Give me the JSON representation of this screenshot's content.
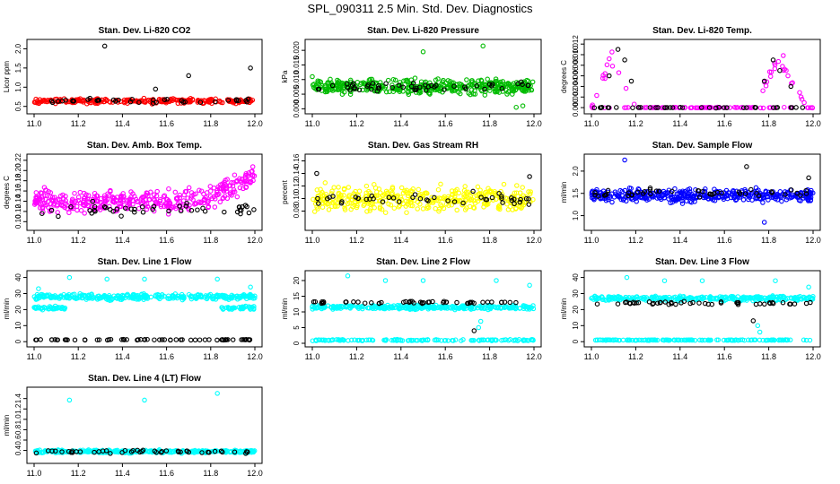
{
  "figure_title": "SPL_090311  2.5 Min. Std. Dev. Diagnostics",
  "chart_data": [
    {
      "type": "scatter",
      "title": "Stan. Dev. Li-820 CO2",
      "ylabel": "Licor ppm",
      "xlim": [
        11.0,
        12.0
      ],
      "ylim": [
        0.4,
        2.15
      ],
      "xticks": [
        "11.0",
        "11.2",
        "11.4",
        "11.6",
        "11.8",
        "12.0"
      ],
      "yticks": [
        "0.5",
        "1.0",
        "1.5",
        "2.0"
      ],
      "series": [
        {
          "color": "#ff0000",
          "band": {
            "center": 0.64,
            "spread": 0.09,
            "density": 260
          }
        },
        {
          "color": "#000000",
          "band": {
            "center": 0.65,
            "spread": 0.08,
            "density": 36
          },
          "extra_points": [
            [
              11.32,
              2.07
            ],
            [
              11.55,
              0.95
            ],
            [
              11.7,
              1.3
            ],
            [
              11.98,
              1.5
            ]
          ]
        }
      ]
    },
    {
      "type": "scatter",
      "title": "Stan. Dev. Li-820 Pressure",
      "ylabel": "kPa",
      "xlim": [
        11.0,
        12.0
      ],
      "ylim": [
        -0.0005,
        0.0225
      ],
      "xticks": [
        "11.0",
        "11.2",
        "11.4",
        "11.6",
        "11.8",
        "12.0"
      ],
      "yticks": [
        "0.000",
        "0.005",
        "0.010",
        "0.015",
        "0.020"
      ],
      "series": [
        {
          "color": "#00bb00",
          "band": {
            "center": 0.0075,
            "spread": 0.0035,
            "density": 420
          },
          "extra_points": [
            [
              11.5,
              0.0195
            ],
            [
              11.77,
              0.0215
            ],
            [
              11.0,
              0.011
            ],
            [
              11.92,
              0.0005
            ],
            [
              11.95,
              0.001
            ]
          ]
        },
        {
          "color": "#000000",
          "band": {
            "center": 0.0075,
            "spread": 0.0025,
            "density": 50
          }
        }
      ]
    },
    {
      "type": "scatter",
      "title": "Stan. Dev. Li-820 Temp.",
      "ylabel": "degrees C",
      "xlim": [
        11.0,
        12.0
      ],
      "ylim": [
        -0.0005,
        0.0122
      ],
      "xticks": [
        "11.0",
        "11.2",
        "11.4",
        "11.6",
        "11.8",
        "12.0"
      ],
      "yticks": [
        "0.000",
        "0.002",
        "0.004",
        "0.006",
        "0.008",
        "0.010",
        "0.012"
      ],
      "series": [
        {
          "color": "#ff00ff",
          "band": {
            "center": 0.0,
            "spread": 0.0001,
            "density": 120
          },
          "bumps": [
            [
              11.0,
              11.2,
              0.0115
            ],
            [
              11.73,
              11.97,
              0.0115
            ]
          ]
        },
        {
          "color": "#000000",
          "band": {
            "center": 0.0,
            "spread": 0.0001,
            "density": 40
          },
          "extra_points": [
            [
              11.08,
              0.006
            ],
            [
              11.12,
              0.011
            ],
            [
              11.15,
              0.009
            ],
            [
              11.18,
              0.005
            ],
            [
              11.78,
              0.005
            ],
            [
              11.82,
              0.009
            ],
            [
              11.85,
              0.007
            ],
            [
              11.9,
              0.004
            ]
          ]
        }
      ]
    },
    {
      "type": "scatter",
      "title": "Stan. Dev. Amb. Box Temp.",
      "ylabel": "degrees C",
      "xlim": [
        11.0,
        12.0
      ],
      "ylim": [
        0.09,
        0.225
      ],
      "xticks": [
        "11.0",
        "11.2",
        "11.4",
        "11.6",
        "11.8",
        "12.0"
      ],
      "yticks": [
        "0.10",
        "0.12",
        "0.14",
        "0.16",
        "0.18",
        "0.20",
        "0.22"
      ],
      "series": [
        {
          "color": "#ff00ff",
          "band": {
            "center": 0.14,
            "spread": 0.03,
            "density": 380
          },
          "rise": {
            "from": 11.75,
            "to": 12.0,
            "end_center": 0.19
          }
        },
        {
          "color": "#000000",
          "band": {
            "center": 0.125,
            "spread": 0.02,
            "density": 45
          }
        }
      ]
    },
    {
      "type": "scatter",
      "title": "Stan. Dev. Gas Stream RH",
      "ylabel": "percent",
      "xlim": [
        11.0,
        12.0
      ],
      "ylim": [
        0.055,
        0.165
      ],
      "xticks": [
        "11.0",
        "11.2",
        "11.4",
        "11.6",
        "11.8",
        "12.0"
      ],
      "yticks": [
        "0.08",
        "0.10",
        "0.12",
        "0.14",
        "0.16"
      ],
      "series": [
        {
          "color": "#ffff00",
          "band": {
            "center": 0.1,
            "spread": 0.028,
            "density": 380
          }
        },
        {
          "color": "#000000",
          "band": {
            "center": 0.1,
            "spread": 0.015,
            "density": 45
          },
          "extra_points": [
            [
              11.02,
              0.14
            ],
            [
              11.98,
              0.135
            ]
          ]
        }
      ]
    },
    {
      "type": "scatter",
      "title": "Stan. Dev. Sample Flow",
      "ylabel": "ml/min",
      "xlim": [
        11.0,
        12.0
      ],
      "ylim": [
        0.75,
        2.3
      ],
      "xticks": [
        "11.0",
        "11.2",
        "11.4",
        "11.6",
        "11.8",
        "12.0"
      ],
      "yticks": [
        "1.0",
        "1.5",
        "2.0"
      ],
      "series": [
        {
          "color": "#0000ff",
          "band": {
            "center": 1.45,
            "spread": 0.2,
            "density": 400
          },
          "extra_points": [
            [
              11.15,
              2.25
            ],
            [
              11.78,
              0.85
            ]
          ]
        },
        {
          "color": "#000000",
          "band": {
            "center": 1.5,
            "spread": 0.15,
            "density": 45
          },
          "extra_points": [
            [
              11.7,
              2.1
            ],
            [
              11.98,
              1.85
            ]
          ]
        }
      ]
    },
    {
      "type": "scatter",
      "title": "Stan. Dev. Line 1 Flow",
      "ylabel": "ml/min",
      "xlim": [
        11.0,
        12.0
      ],
      "ylim": [
        -1,
        42
      ],
      "xticks": [
        "11.0",
        "11.2",
        "11.4",
        "11.6",
        "11.8",
        "12.0"
      ],
      "yticks": [
        "0",
        "10",
        "20",
        "30",
        "40"
      ],
      "series": [
        {
          "color": "#00ffff",
          "band": {
            "center": 28,
            "spread": 2.5,
            "density": 320
          },
          "extra_points": [
            [
              11.02,
              33
            ],
            [
              11.16,
              40
            ],
            [
              11.33,
              39
            ],
            [
              11.5,
              39
            ],
            [
              11.83,
              39
            ],
            [
              11.98,
              34
            ]
          ]
        },
        {
          "color": "#00ffff",
          "band": {
            "center": 21,
            "spread": 1.5,
            "density": 80
          },
          "segments": [
            [
              11.0,
              11.15
            ],
            [
              11.85,
              12.0
            ]
          ]
        },
        {
          "color": "#000000",
          "band": {
            "center": 1.2,
            "spread": 0.3,
            "density": 60
          }
        }
      ]
    },
    {
      "type": "scatter",
      "title": "Stan. Dev. Line 2 Flow",
      "ylabel": "ml/min",
      "xlim": [
        11.0,
        12.0
      ],
      "ylim": [
        0,
        22
      ],
      "xticks": [
        "11.0",
        "11.2",
        "11.4",
        "11.6",
        "11.8",
        "12.0"
      ],
      "yticks": [
        "0",
        "5",
        "10",
        "15",
        "20"
      ],
      "series": [
        {
          "color": "#00ffff",
          "band": {
            "center": 11.5,
            "spread": 1.0,
            "density": 300
          },
          "extra_points": [
            [
              11.16,
              21.5
            ],
            [
              11.33,
              20
            ],
            [
              11.5,
              20
            ],
            [
              11.83,
              20
            ],
            [
              11.98,
              18.5
            ],
            [
              11.75,
              5
            ],
            [
              11.76,
              7
            ]
          ]
        },
        {
          "color": "#00ffff",
          "band": {
            "center": 1.0,
            "spread": 0.3,
            "density": 140
          }
        },
        {
          "color": "#000000",
          "band": {
            "center": 13.0,
            "spread": 0.6,
            "density": 50
          },
          "extra_points": [
            [
              11.73,
              4
            ]
          ]
        }
      ]
    },
    {
      "type": "scatter",
      "title": "Stan. Dev. Line 3 Flow",
      "ylabel": "ml/min",
      "xlim": [
        11.0,
        12.0
      ],
      "ylim": [
        -1,
        42
      ],
      "xticks": [
        "11.0",
        "11.2",
        "11.4",
        "11.6",
        "11.8",
        "12.0"
      ],
      "yticks": [
        "0",
        "10",
        "20",
        "30",
        "40"
      ],
      "series": [
        {
          "color": "#00ffff",
          "band": {
            "center": 27,
            "spread": 2.0,
            "density": 300
          },
          "extra_points": [
            [
              11.16,
              40
            ],
            [
              11.33,
              38
            ],
            [
              11.5,
              38
            ],
            [
              11.83,
              38
            ],
            [
              11.98,
              34
            ],
            [
              11.75,
              10
            ],
            [
              11.76,
              6
            ]
          ]
        },
        {
          "color": "#00ffff",
          "band": {
            "center": 1.0,
            "spread": 0.3,
            "density": 140
          }
        },
        {
          "color": "#000000",
          "band": {
            "center": 24,
            "spread": 1.5,
            "density": 50
          },
          "extra_points": [
            [
              11.73,
              13
            ]
          ]
        }
      ]
    },
    {
      "type": "scatter",
      "title": "Stan. Dev. Line 4 (LT) Flow",
      "ylabel": "ml/min",
      "xlim": [
        11.0,
        12.0
      ],
      "ylim": [
        0.22,
        1.55
      ],
      "xticks": [
        "11.0",
        "11.2",
        "11.4",
        "11.6",
        "11.8",
        "12.0"
      ],
      "yticks": [
        "0.4",
        "0.6",
        "0.8",
        "1.0",
        "1.2",
        "1.4"
      ],
      "series": [
        {
          "color": "#00ffff",
          "band": {
            "center": 0.38,
            "spread": 0.04,
            "density": 300
          },
          "extra_points": [
            [
              11.16,
              1.37
            ],
            [
              11.5,
              1.37
            ],
            [
              11.83,
              1.5
            ]
          ]
        },
        {
          "color": "#000000",
          "band": {
            "center": 0.38,
            "spread": 0.05,
            "density": 45
          }
        }
      ]
    }
  ]
}
